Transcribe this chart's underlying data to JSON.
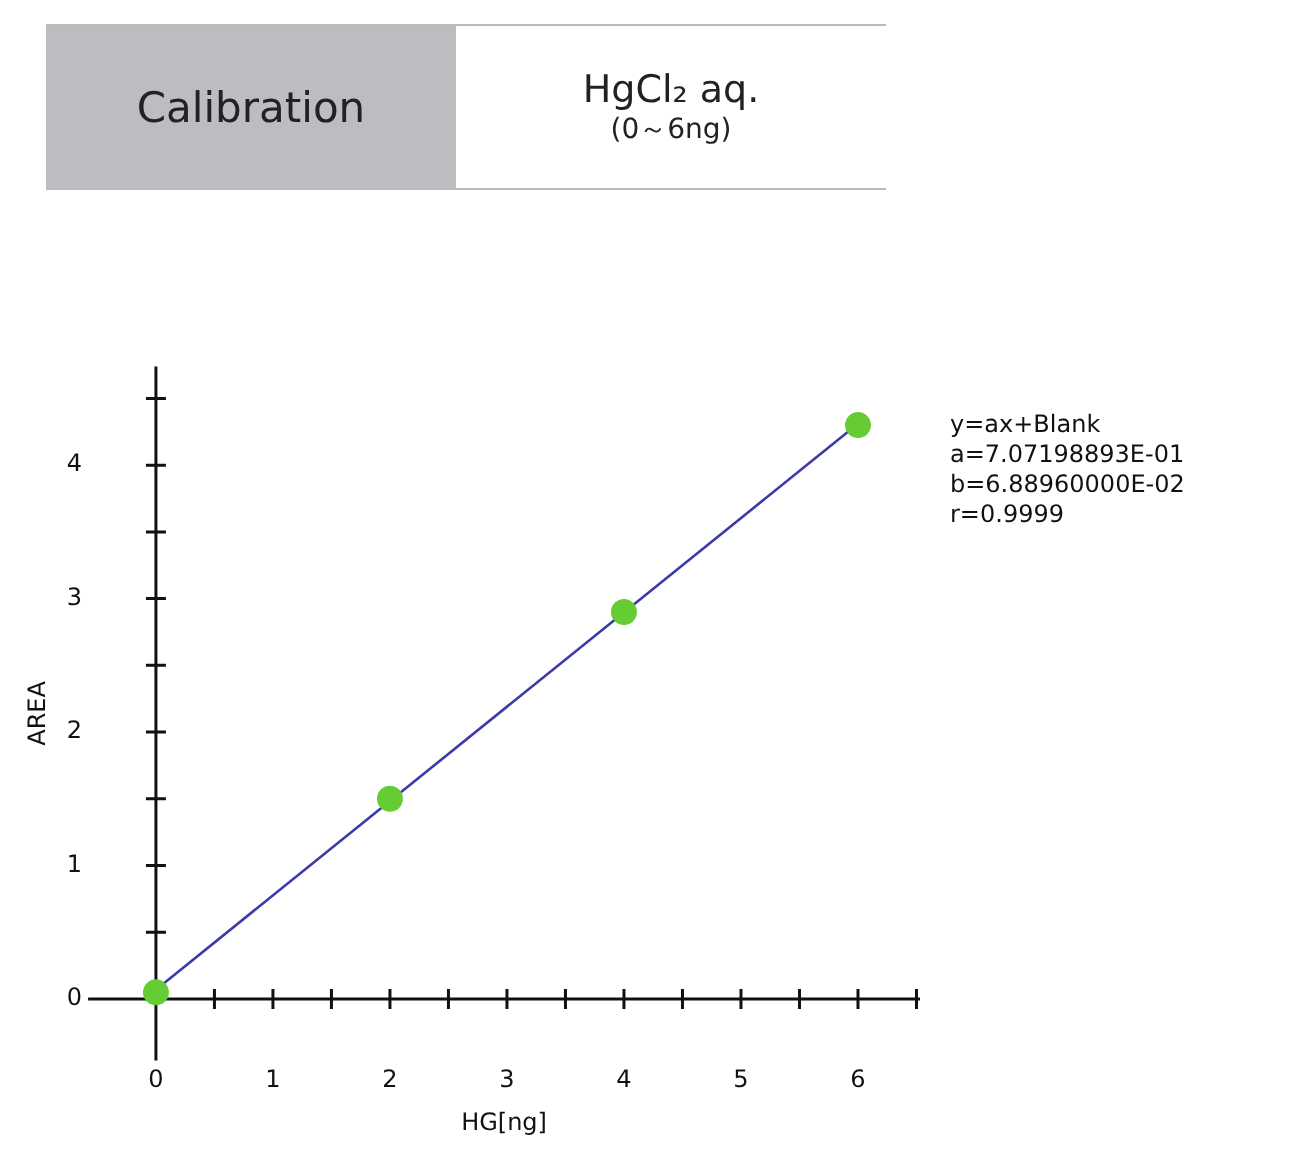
{
  "chart_data": {
    "type": "scatter",
    "title": "Calibration",
    "subtitle": "HgCl₂ aq.",
    "xlabel": "HG[ng]",
    "ylabel": "AREA",
    "annotations": [
      "(0～6ng)",
      "y=ax+Blank",
      "a=7.07198893E-01",
      "b=6.88960000E-02",
      "r=0.9999"
    ],
    "series": [
      {
        "type": "line",
        "x": [
          0,
          6
        ],
        "values": [
          0.07,
          4.31
        ],
        "color": "#3a3aa8",
        "marker": "none",
        "line_style": "solid"
      },
      {
        "type": "scatter",
        "x": [
          0,
          2,
          4,
          6
        ],
        "values": [
          0.05,
          1.5,
          2.9,
          4.3
        ],
        "color": "#66cc33",
        "marker": "circle"
      }
    ],
    "xlim": [
      -0.58,
      6.53
    ],
    "ylim": [
      -0.46,
      4.74
    ],
    "xticks": [
      0,
      {
        "value": 0.5,
        "label": null
      },
      1,
      {
        "value": 1.5,
        "label": null
      },
      2,
      {
        "value": 2.5,
        "label": null
      },
      3,
      {
        "value": 3.5,
        "label": null
      },
      4,
      {
        "value": 4.5,
        "label": null
      },
      5,
      {
        "value": 5.5,
        "label": null
      },
      6,
      {
        "value": 6.5,
        "label": null
      }
    ],
    "yticks": [
      0,
      {
        "value": 0.5,
        "label": null
      },
      1,
      {
        "value": 1.5,
        "label": null
      },
      2,
      {
        "value": 2.5,
        "label": null
      },
      3,
      {
        "value": 3.5,
        "label": null
      },
      4,
      {
        "value": 4.5,
        "label": null
      }
    ],
    "legend": false
  }
}
